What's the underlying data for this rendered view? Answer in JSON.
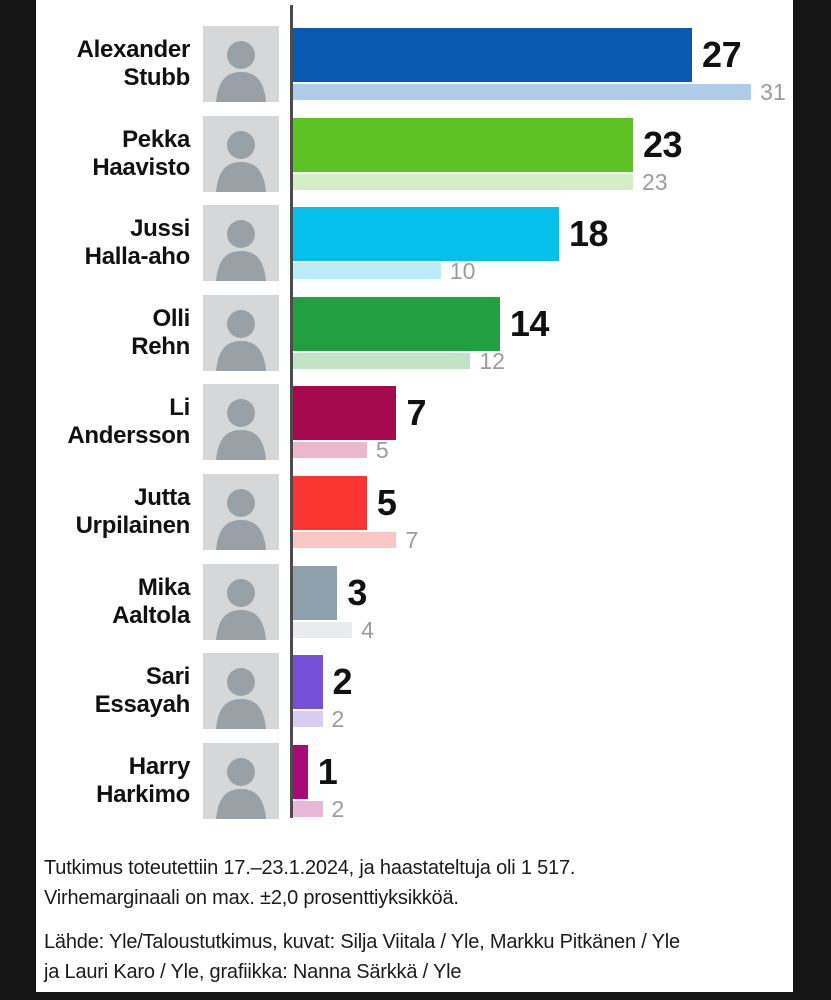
{
  "chart_data": {
    "type": "bar",
    "orientation": "horizontal",
    "title": "",
    "categories": [
      "Alexander Stubb",
      "Pekka Haavisto",
      "Jussi Halla-aho",
      "Olli Rehn",
      "Li Andersson",
      "Jutta Urpilainen",
      "Mika Aaltola",
      "Sari Essayah",
      "Harry Harkimo"
    ],
    "series": [
      {
        "name": "current",
        "values": [
          27,
          23,
          18,
          14,
          7,
          5,
          3,
          2,
          1
        ]
      },
      {
        "name": "previous",
        "values": [
          31,
          23,
          10,
          12,
          5,
          7,
          4,
          2,
          2
        ]
      }
    ],
    "xlim": [
      0,
      33.8
    ],
    "grid": false,
    "legend": "none",
    "value_labels": "outside-end"
  },
  "candidates": [
    {
      "name_lines": [
        "Alexander",
        "Stubb"
      ],
      "value": "27",
      "previous": "31",
      "value_num": 27,
      "previous_num": 31,
      "color": "#0b5ab1",
      "light_color": "#b1cce8"
    },
    {
      "name_lines": [
        "Pekka",
        "Haavisto"
      ],
      "value": "23",
      "previous": "23",
      "value_num": 23,
      "previous_num": 23,
      "color": "#5ec226",
      "light_color": "#d5eec6"
    },
    {
      "name_lines": [
        "Jussi",
        "Halla-aho"
      ],
      "value": "18",
      "previous": "10",
      "value_num": 18,
      "previous_num": 10,
      "color": "#04c0ea",
      "light_color": "#baecfa"
    },
    {
      "name_lines": [
        "Olli",
        "Rehn"
      ],
      "value": "14",
      "previous": "12",
      "value_num": 14,
      "previous_num": 12,
      "color": "#22a041",
      "light_color": "#c1e3c6"
    },
    {
      "name_lines": [
        "Li",
        "Andersson"
      ],
      "value": "7",
      "previous": "5",
      "value_num": 7,
      "previous_num": 5,
      "color": "#a50a4e",
      "light_color": "#eab7cc"
    },
    {
      "name_lines": [
        "Jutta",
        "Urpilainen"
      ],
      "value": "5",
      "previous": "7",
      "value_num": 5,
      "previous_num": 7,
      "color": "#f93431",
      "light_color": "#f9c6c6"
    },
    {
      "name_lines": [
        "Mika",
        "Aaltola"
      ],
      "value": "3",
      "previous": "4",
      "value_num": 3,
      "previous_num": 4,
      "color": "#8da0ab",
      "light_color": "#e8eced"
    },
    {
      "name_lines": [
        "Sari",
        "Essayah"
      ],
      "value": "2",
      "previous": "2",
      "value_num": 2,
      "previous_num": 2,
      "color": "#7750d8",
      "light_color": "#d6cdf0"
    },
    {
      "name_lines": [
        "Harry",
        "Harkimo"
      ],
      "value": "1",
      "previous": "2",
      "value_num": 1,
      "previous_num": 2,
      "color": "#a80b77",
      "light_color": "#e9b8d7"
    }
  ],
  "footer": {
    "study_lines": [
      "Tutkimus toteutettiin 17.–23.1.2024, ja haastateltuja oli 1 517.",
      "Virhemarginaali on max. ±2,0 prosenttiyksikköä."
    ],
    "source_lines": [
      "Lähde: Yle/Taloustutkimus, kuvat: Silja Viitala / Yle, Markku Pitkänen / Yle",
      "ja Lauri Karo / Yle, grafiikka: Nanna Särkkä / Yle"
    ]
  },
  "colors": {
    "background_outer": "#151515",
    "background_card": "#ffffff",
    "axis_line": "#4c4c4c",
    "value_label": "#111111",
    "previous_label": "#9c9c9c",
    "photo_placeholder_bg": "#d5d7d9",
    "photo_silhouette": "#99a1a7"
  }
}
